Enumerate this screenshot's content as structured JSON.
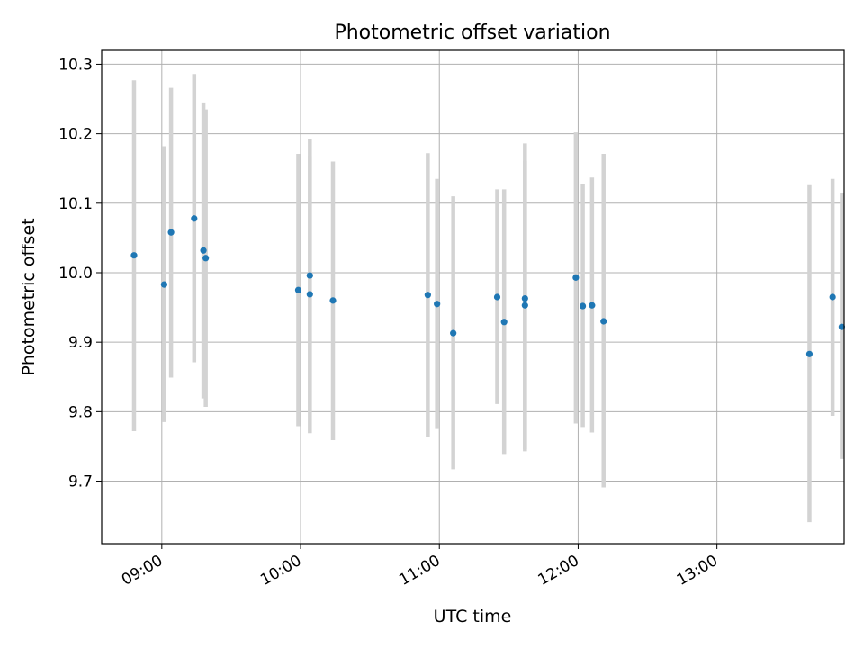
{
  "chart_data": {
    "type": "scatter",
    "title": "Photometric offset variation",
    "xlabel": "UTC time",
    "ylabel": "Photometric offset",
    "x_tick_labels": [
      "09:00",
      "10:00",
      "11:00",
      "12:00",
      "13:00"
    ],
    "y_tick_labels": [
      "9.7",
      "9.8",
      "9.9",
      "10.0",
      "10.1",
      "10.2",
      "10.3"
    ],
    "xlim": [
      "08:34",
      "13:55"
    ],
    "ylim": [
      9.61,
      10.32
    ],
    "grid": true,
    "errorbar_color": "#d3d3d3",
    "marker_color": "#1f77b4",
    "points": [
      {
        "x": "08:48",
        "y": 10.025,
        "ylo": 9.772,
        "yhi": 10.277
      },
      {
        "x": "09:01",
        "y": 9.983,
        "ylo": 9.785,
        "yhi": 10.182
      },
      {
        "x": "09:04",
        "y": 10.058,
        "ylo": 9.849,
        "yhi": 10.266
      },
      {
        "x": "09:14",
        "y": 10.078,
        "ylo": 9.871,
        "yhi": 10.286
      },
      {
        "x": "09:18",
        "y": 10.032,
        "ylo": 9.819,
        "yhi": 10.245
      },
      {
        "x": "09:19",
        "y": 10.021,
        "ylo": 9.807,
        "yhi": 10.235
      },
      {
        "x": "09:59",
        "y": 9.975,
        "ylo": 9.779,
        "yhi": 10.171
      },
      {
        "x": "10:04",
        "y": 9.996,
        "ylo": 9.8,
        "yhi": 10.192
      },
      {
        "x": "10:04",
        "y": 9.969,
        "ylo": 9.769,
        "yhi": 10.168
      },
      {
        "x": "10:14",
        "y": 9.96,
        "ylo": 9.759,
        "yhi": 10.16
      },
      {
        "x": "10:55",
        "y": 9.968,
        "ylo": 9.763,
        "yhi": 10.172
      },
      {
        "x": "10:59",
        "y": 9.955,
        "ylo": 9.775,
        "yhi": 10.135
      },
      {
        "x": "11:06",
        "y": 9.913,
        "ylo": 9.717,
        "yhi": 10.11
      },
      {
        "x": "11:25",
        "y": 9.965,
        "ylo": 9.811,
        "yhi": 10.12
      },
      {
        "x": "11:28",
        "y": 9.929,
        "ylo": 9.739,
        "yhi": 10.12
      },
      {
        "x": "11:37",
        "y": 9.963,
        "ylo": 9.743,
        "yhi": 10.186
      },
      {
        "x": "11:37",
        "y": 9.953,
        "ylo": 9.746,
        "yhi": 10.161
      },
      {
        "x": "11:59",
        "y": 9.993,
        "ylo": 9.783,
        "yhi": 10.202
      },
      {
        "x": "12:02",
        "y": 9.952,
        "ylo": 9.778,
        "yhi": 10.127
      },
      {
        "x": "12:06",
        "y": 9.953,
        "ylo": 9.77,
        "yhi": 10.137
      },
      {
        "x": "12:11",
        "y": 9.93,
        "ylo": 9.691,
        "yhi": 10.171
      },
      {
        "x": "13:40",
        "y": 9.883,
        "ylo": 9.641,
        "yhi": 10.126
      },
      {
        "x": "13:50",
        "y": 9.965,
        "ylo": 9.794,
        "yhi": 10.135
      },
      {
        "x": "13:54",
        "y": 9.922,
        "ylo": 9.732,
        "yhi": 10.114
      }
    ]
  }
}
